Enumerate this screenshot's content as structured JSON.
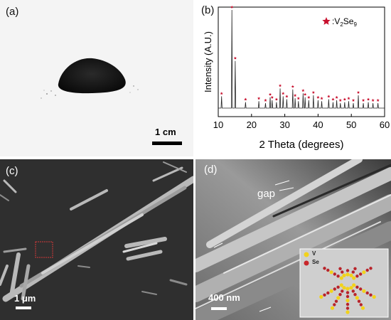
{
  "panels": {
    "a": {
      "label": "(a)",
      "scale_label": "1 cm"
    },
    "b": {
      "label": "(b)"
    },
    "c": {
      "label": "(c)",
      "scale_label": "1 μm"
    },
    "d": {
      "label": "(d)",
      "scale_label": "400 nm",
      "annotation": "gap",
      "inset": {
        "legend": [
          {
            "symbol": "V",
            "color": "#f2d21a"
          },
          {
            "symbol": "Se",
            "color": "#c8262a"
          }
        ]
      }
    }
  },
  "chart_data": {
    "type": "line",
    "title": "",
    "xlabel": "2 Theta (degrees)",
    "ylabel": "Intensity (A.U.)",
    "xlim": [
      10,
      60
    ],
    "xticks": [
      10,
      20,
      30,
      40,
      50,
      60
    ],
    "legend": {
      "label": ":V",
      "sub": "2",
      "mid": "Se",
      "sub2": "9",
      "placement": "top-right",
      "marker_color": "#c8102e"
    },
    "peaks": [
      {
        "x": 11.0,
        "y": 0.12
      },
      {
        "x": 14.1,
        "y": 1.0
      },
      {
        "x": 15.1,
        "y": 0.48
      },
      {
        "x": 18.2,
        "y": 0.06
      },
      {
        "x": 22.2,
        "y": 0.07
      },
      {
        "x": 24.2,
        "y": 0.05
      },
      {
        "x": 25.6,
        "y": 0.11
      },
      {
        "x": 26.2,
        "y": 0.08
      },
      {
        "x": 27.5,
        "y": 0.06
      },
      {
        "x": 28.6,
        "y": 0.2
      },
      {
        "x": 29.5,
        "y": 0.12
      },
      {
        "x": 30.6,
        "y": 0.09
      },
      {
        "x": 32.4,
        "y": 0.19
      },
      {
        "x": 33.1,
        "y": 0.1
      },
      {
        "x": 34.1,
        "y": 0.07
      },
      {
        "x": 35.5,
        "y": 0.15
      },
      {
        "x": 36.1,
        "y": 0.11
      },
      {
        "x": 37.2,
        "y": 0.08
      },
      {
        "x": 38.6,
        "y": 0.13
      },
      {
        "x": 40.0,
        "y": 0.08
      },
      {
        "x": 41.1,
        "y": 0.07
      },
      {
        "x": 43.2,
        "y": 0.09
      },
      {
        "x": 44.5,
        "y": 0.06
      },
      {
        "x": 45.6,
        "y": 0.08
      },
      {
        "x": 46.7,
        "y": 0.05
      },
      {
        "x": 48.0,
        "y": 0.06
      },
      {
        "x": 49.2,
        "y": 0.07
      },
      {
        "x": 50.6,
        "y": 0.05
      },
      {
        "x": 52.1,
        "y": 0.13
      },
      {
        "x": 53.6,
        "y": 0.05
      },
      {
        "x": 55.1,
        "y": 0.06
      },
      {
        "x": 56.5,
        "y": 0.05
      },
      {
        "x": 58.0,
        "y": 0.05
      }
    ]
  }
}
